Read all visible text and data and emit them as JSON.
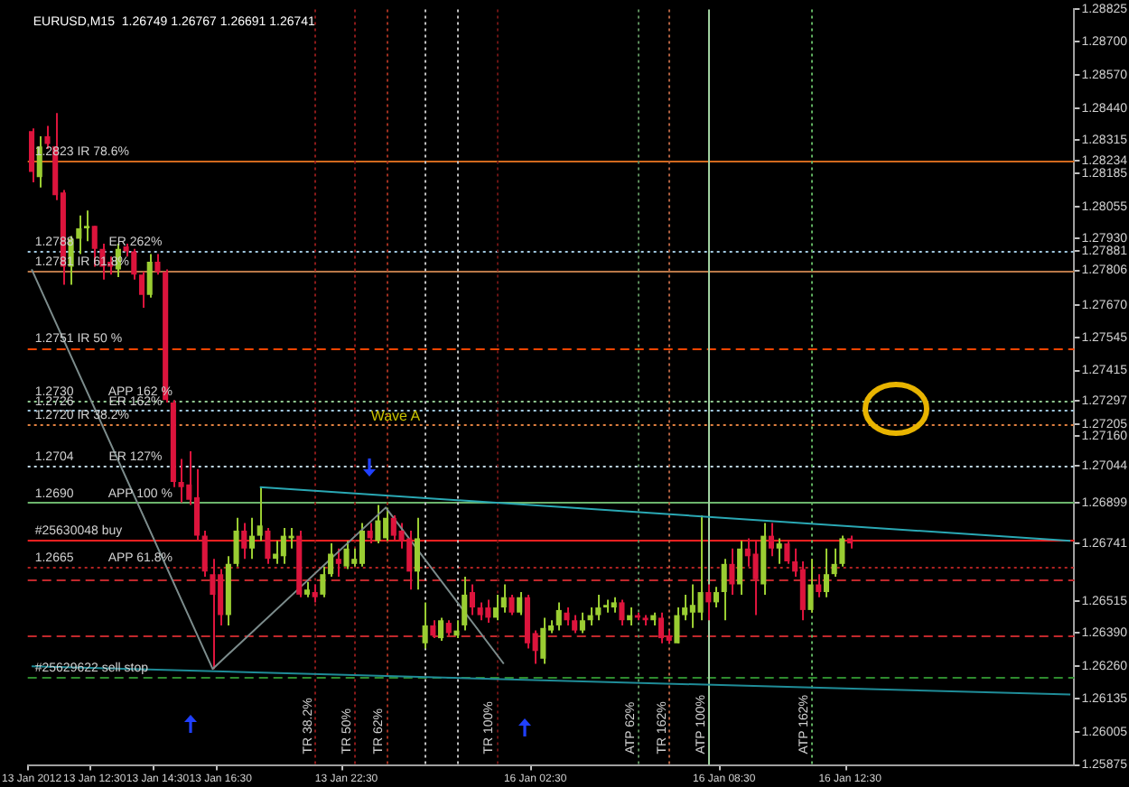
{
  "chart_data": {
    "type": "candlestick",
    "title": "EURUSD,M15  1.26749 1.26767 1.26691 1.26741",
    "categories": [
      "13 Jan 2012",
      null,
      null,
      null,
      null,
      null,
      null,
      null,
      "13 Jan 12:30",
      null,
      null,
      null,
      null,
      null,
      null,
      null,
      "13 Jan 14:30",
      null,
      null,
      null,
      null,
      null,
      null,
      null,
      "13 Jan 16:30",
      null,
      null,
      null,
      null,
      null,
      null,
      null,
      null,
      null,
      null,
      null,
      null,
      null,
      null,
      null,
      "13 Jan 22:30",
      null,
      null,
      null,
      null,
      null,
      null,
      null,
      null,
      null,
      null,
      null,
      null,
      null,
      null,
      null,
      null,
      null,
      null,
      null,
      null,
      null,
      null,
      null,
      "16 Jan 02:30",
      null,
      null,
      null,
      null,
      null,
      null,
      null,
      null,
      null,
      null,
      null,
      null,
      null,
      null,
      null,
      null,
      null,
      null,
      null,
      null,
      null,
      null,
      null,
      "16 Jan 08:30",
      null,
      null,
      null,
      null,
      null,
      null,
      null,
      null,
      null,
      null,
      null,
      null,
      null,
      null,
      null,
      "16 Jan 12:30",
      null,
      null,
      null,
      null,
      null,
      null,
      null,
      null,
      null,
      null,
      null,
      null,
      null,
      null,
      null,
      null,
      null,
      null,
      null,
      null,
      null,
      null,
      null,
      null,
      null,
      null,
      null,
      null
    ],
    "ohlc": [
      [
        1.2835,
        1.2836,
        1.2815,
        1.2819
      ],
      [
        1.2817,
        1.2833,
        1.2813,
        1.2829
      ],
      [
        1.2833,
        1.2837,
        1.2828,
        1.283
      ],
      [
        1.2829,
        1.2842,
        1.2808,
        1.281
      ],
      [
        1.2811,
        1.2812,
        1.2775,
        1.2782
      ],
      [
        1.2782,
        1.2794,
        1.2775,
        1.2793
      ],
      [
        1.2793,
        1.2802,
        1.2787,
        1.2797
      ],
      [
        1.2797,
        1.2804,
        1.2792,
        1.2798
      ],
      [
        1.2798,
        1.2798,
        1.2782,
        1.2789
      ],
      [
        1.2789,
        1.2791,
        1.2777,
        1.2782
      ],
      [
        1.2784,
        1.2786,
        1.2779,
        1.2782
      ],
      [
        1.2781,
        1.2791,
        1.2778,
        1.2789
      ],
      [
        1.279,
        1.2791,
        1.2786,
        1.2788
      ],
      [
        1.2788,
        1.2789,
        1.2777,
        1.2779
      ],
      [
        1.2779,
        1.278,
        1.2766,
        1.2771
      ],
      [
        1.2771,
        1.2787,
        1.277,
        1.2784
      ],
      [
        1.2784,
        1.2787,
        1.2779,
        1.278
      ],
      [
        1.278,
        1.2781,
        1.2729,
        1.273
      ],
      [
        1.2729,
        1.273,
        1.2696,
        1.2698
      ],
      [
        1.2698,
        1.2707,
        1.269,
        1.2696
      ],
      [
        1.2697,
        1.271,
        1.2689,
        1.2691
      ],
      [
        1.2692,
        1.2703,
        1.2675,
        1.2677
      ],
      [
        1.2677,
        1.2679,
        1.2661,
        1.2663
      ],
      [
        1.2662,
        1.2668,
        1.2625,
        1.2654
      ],
      [
        1.2662,
        1.2664,
        1.2642,
        1.2646
      ],
      [
        1.2646,
        1.2669,
        1.2642,
        1.2666
      ],
      [
        1.2666,
        1.2684,
        1.2665,
        1.2679
      ],
      [
        1.2679,
        1.2682,
        1.2668,
        1.2672
      ],
      [
        1.2672,
        1.2684,
        1.2668,
        1.2677
      ],
      [
        1.2677,
        1.2696,
        1.2675,
        1.2681
      ],
      [
        1.2679,
        1.268,
        1.2666,
        1.2668
      ],
      [
        1.2668,
        1.2675,
        1.2666,
        1.267
      ],
      [
        1.2669,
        1.268,
        1.2666,
        1.2677
      ],
      [
        1.2676,
        1.268,
        1.2672,
        1.2677
      ],
      [
        1.2677,
        1.2679,
        1.2653,
        1.2654
      ],
      [
        1.2654,
        1.2659,
        1.2653,
        1.2656
      ],
      [
        1.2655,
        1.2658,
        1.2651,
        1.2653
      ],
      [
        1.2654,
        1.2665,
        1.2653,
        1.2662
      ],
      [
        1.2662,
        1.2674,
        1.2661,
        1.267
      ],
      [
        1.2668,
        1.2672,
        1.2661,
        1.2666
      ],
      [
        1.2665,
        1.2675,
        1.2664,
        1.2672
      ],
      [
        1.2666,
        1.2672,
        1.2665,
        1.2668
      ],
      [
        1.2666,
        1.2682,
        1.2665,
        1.2679
      ],
      [
        1.2679,
        1.2682,
        1.2674,
        1.2676
      ],
      [
        1.2675,
        1.2689,
        1.2674,
        1.2683
      ],
      [
        1.2676,
        1.2688,
        1.2675,
        1.2684
      ],
      [
        1.2684,
        1.2685,
        1.2675,
        1.2677
      ],
      [
        1.2679,
        1.2682,
        1.2672,
        1.2675
      ],
      [
        1.2676,
        1.2679,
        1.2656,
        1.2663
      ],
      [
        1.2663,
        1.2684,
        1.2656,
        1.2676
      ],
      [
        1.2635,
        1.2651,
        1.2633,
        1.2642
      ],
      [
        1.2642,
        1.2644,
        1.2637,
        1.2638
      ],
      [
        1.2637,
        1.2645,
        1.2636,
        1.2644
      ],
      [
        1.2643,
        1.2644,
        1.2638,
        1.2639
      ],
      [
        1.2638,
        1.2644,
        1.2637,
        1.264
      ],
      [
        1.2642,
        1.2661,
        1.264,
        1.2654
      ],
      [
        1.2655,
        1.2658,
        1.2646,
        1.2649
      ],
      [
        1.2649,
        1.2651,
        1.2644,
        1.2646
      ],
      [
        1.2649,
        1.2652,
        1.2643,
        1.2645
      ],
      [
        1.2645,
        1.2654,
        1.2644,
        1.2649
      ],
      [
        1.2649,
        1.2658,
        1.2647,
        1.2653
      ],
      [
        1.2653,
        1.2654,
        1.2646,
        1.2647
      ],
      [
        1.2647,
        1.2655,
        1.2646,
        1.2653
      ],
      [
        1.2653,
        1.2654,
        1.2633,
        1.2635
      ],
      [
        1.2639,
        1.264,
        1.2627,
        1.2632
      ],
      [
        1.2629,
        1.2645,
        1.2627,
        1.2641
      ],
      [
        1.264,
        1.2644,
        1.2639,
        1.2642
      ],
      [
        1.2642,
        1.2651,
        1.264,
        1.2648
      ],
      [
        1.2647,
        1.2649,
        1.2642,
        1.2644
      ],
      [
        1.2644,
        1.2646,
        1.2639,
        1.264
      ],
      [
        1.264,
        1.2647,
        1.2639,
        1.2644
      ],
      [
        1.2644,
        1.2649,
        1.2642,
        1.2646
      ],
      [
        1.2646,
        1.2654,
        1.2644,
        1.2649
      ],
      [
        1.2649,
        1.2652,
        1.2647,
        1.265
      ],
      [
        1.2649,
        1.2653,
        1.2647,
        1.2651
      ],
      [
        1.2651,
        1.2652,
        1.2642,
        1.2644
      ],
      [
        1.2644,
        1.2649,
        1.2642,
        1.2646
      ],
      [
        1.2646,
        1.2647,
        1.2644,
        1.2645
      ],
      [
        1.2645,
        1.2646,
        1.2642,
        1.2644
      ],
      [
        1.2644,
        1.2647,
        1.2642,
        1.2646
      ],
      [
        1.2645,
        1.2647,
        1.2635,
        1.2637
      ],
      [
        1.2638,
        1.264,
        1.2635,
        1.2636
      ],
      [
        1.2635,
        1.2649,
        1.2635,
        1.2646
      ],
      [
        1.2646,
        1.2654,
        1.2644,
        1.2649
      ],
      [
        1.2647,
        1.2658,
        1.2641,
        1.265
      ],
      [
        1.2647,
        1.2685,
        1.2644,
        1.2655
      ],
      [
        1.2655,
        1.2658,
        1.2644,
        1.2651
      ],
      [
        1.2651,
        1.2657,
        1.2649,
        1.2655
      ],
      [
        1.2655,
        1.2668,
        1.2644,
        1.2666
      ],
      [
        1.2666,
        1.2672,
        1.2654,
        1.2658
      ],
      [
        1.2658,
        1.2675,
        1.2654,
        1.2672
      ],
      [
        1.2672,
        1.2676,
        1.2665,
        1.2669
      ],
      [
        1.267,
        1.2675,
        1.2646,
        1.266
      ],
      [
        1.2658,
        1.2682,
        1.2654,
        1.2677
      ],
      [
        1.2677,
        1.2682,
        1.2669,
        1.2672
      ],
      [
        1.2672,
        1.2676,
        1.2666,
        1.2674
      ],
      [
        1.2674,
        1.2675,
        1.2666,
        1.2667
      ],
      [
        1.2667,
        1.2672,
        1.2661,
        1.2663
      ],
      [
        1.2664,
        1.2667,
        1.2644,
        1.2648
      ],
      [
        1.2648,
        1.2668,
        1.2647,
        1.2658
      ],
      [
        1.2658,
        1.2662,
        1.2653,
        1.2655
      ],
      [
        1.2655,
        1.2672,
        1.2653,
        1.2662
      ],
      [
        1.2662,
        1.2672,
        1.2661,
        1.2666
      ],
      [
        1.2666,
        1.2677,
        1.2665,
        1.2676
      ],
      [
        1.2676,
        1.2677,
        1.2672,
        1.2674
      ],
      null,
      null,
      null,
      null,
      null,
      null,
      null,
      null,
      null,
      null,
      null,
      null,
      null,
      null,
      null,
      null,
      null,
      null,
      null,
      null,
      null,
      null,
      null,
      null,
      null,
      null,
      null,
      null
    ],
    "colors": [
      "#dc143c",
      "#9acd32",
      "#dc143c",
      "#dc143c",
      "#dc143c",
      "#9acd32",
      "#9acd32",
      "#9acd32",
      "#dc143c",
      "#dc143c",
      "#dc143c",
      "#9acd32",
      "#dc143c",
      "#dc143c",
      "#dc143c",
      "#9acd32",
      "#dc143c",
      "#dc143c",
      "#dc143c",
      "#dc143c",
      "#dc143c",
      "#dc143c",
      "#dc143c",
      "#dc143c",
      "#dc143c",
      "#9acd32",
      "#9acd32",
      "#dc143c",
      "#9acd32",
      "#9acd32",
      "#dc143c",
      "#9acd32",
      "#9acd32",
      "#9acd32",
      "#dc143c",
      "#9acd32",
      "#dc143c",
      "#9acd32",
      "#9acd32",
      "#dc143c",
      "#9acd32",
      "#9acd32",
      "#9acd32",
      "#dc143c",
      "#9acd32",
      "#9acd32",
      "#dc143c",
      "#dc143c",
      "#dc143c",
      "#9acd32",
      "#9acd32",
      "#dc143c",
      "#9acd32",
      "#dc143c",
      "#9acd32",
      "#9acd32",
      "#dc143c",
      "#dc143c",
      "#dc143c",
      "#9acd32",
      "#9acd32",
      "#dc143c",
      "#9acd32",
      "#dc143c",
      "#dc143c",
      "#9acd32",
      "#9acd32",
      "#9acd32",
      "#dc143c",
      "#dc143c",
      "#9acd32",
      "#9acd32",
      "#9acd32",
      "#9acd32",
      "#9acd32",
      "#dc143c",
      "#9acd32",
      "#dc143c",
      "#dc143c",
      "#9acd32",
      "#dc143c",
      "#dc143c",
      "#9acd32",
      "#9acd32",
      "#9acd32",
      "#9acd32",
      "#dc143c",
      "#9acd32",
      "#9acd32",
      "#dc143c",
      "#9acd32",
      "#dc143c",
      "#dc143c",
      "#9acd32",
      "#dc143c",
      "#9acd32",
      "#dc143c",
      "#dc143c",
      "#dc143c",
      "#9acd32",
      "#dc143c",
      "#9acd32",
      "#9acd32",
      "#9acd32",
      "#dc143c",
      null,
      null,
      null,
      null,
      null,
      null,
      null,
      null,
      null,
      null,
      null,
      null,
      null,
      null,
      null,
      null,
      null,
      null,
      null,
      null,
      null,
      null,
      null,
      null,
      null,
      null,
      null,
      null
    ],
    "series": [
      {
        "type": "line",
        "color": "#7c8c8c",
        "values": [
          1.2781,
          null,
          null,
          null,
          null,
          null,
          null,
          null,
          null,
          null,
          null,
          null,
          null,
          null,
          null,
          null,
          null,
          null,
          null,
          null,
          null,
          null,
          null,
          1.2625,
          null,
          null,
          null,
          null,
          null,
          null,
          null,
          null,
          null,
          null,
          null,
          null,
          null,
          null,
          null,
          null,
          null,
          null,
          null,
          null,
          null,
          1.2688,
          null,
          null,
          null,
          null,
          null,
          null,
          null,
          null,
          null,
          null,
          null,
          null,
          null,
          null,
          1.2627,
          null,
          null,
          null,
          null,
          null,
          null,
          null,
          null,
          null,
          null,
          null,
          null,
          null,
          null,
          null,
          null,
          null,
          null,
          null,
          null,
          null,
          null,
          null,
          null,
          null,
          null,
          null,
          null,
          null,
          null,
          null,
          null,
          null,
          null,
          null,
          null,
          null,
          null,
          null,
          null,
          null,
          null,
          null,
          null,
          null,
          null,
          null,
          null,
          null,
          null,
          null,
          null,
          null,
          null,
          null,
          null,
          null,
          null,
          null,
          null,
          null,
          null,
          null,
          null,
          null,
          null,
          null,
          null,
          null,
          null,
          null,
          null
        ]
      },
      {
        "type": "line",
        "color": "#2aa8b4",
        "values": [
          null,
          null,
          null,
          null,
          null,
          null,
          null,
          null,
          null,
          null,
          null,
          null,
          null,
          null,
          null,
          null,
          null,
          null,
          null,
          null,
          null,
          null,
          null,
          null,
          null,
          null,
          null,
          null,
          null,
          1.2696,
          null,
          null,
          null,
          null,
          null,
          null,
          null,
          null,
          null,
          null,
          null,
          null,
          null,
          null,
          null,
          null,
          null,
          null,
          null,
          null,
          null,
          null,
          null,
          null,
          null,
          null,
          null,
          null,
          null,
          null,
          null,
          null,
          null,
          null,
          null,
          null,
          null,
          null,
          null,
          null,
          null,
          null,
          null,
          null,
          null,
          null,
          null,
          null,
          null,
          null,
          null,
          null,
          null,
          null,
          null,
          null,
          null,
          null,
          null,
          null,
          null,
          null,
          null,
          null,
          null,
          null,
          null,
          null,
          null,
          null,
          null,
          null,
          null,
          null,
          null,
          null,
          null,
          null,
          null,
          null,
          null,
          null,
          null,
          null,
          null,
          null,
          null,
          null,
          null,
          null,
          null,
          null,
          null,
          null,
          null,
          null,
          null,
          null,
          null,
          null,
          null,
          null,
          1.2675
        ]
      },
      {
        "type": "line",
        "color": "#1f8c98",
        "values": [
          1.2626,
          null,
          null,
          null,
          null,
          null,
          null,
          null,
          null,
          null,
          null,
          null,
          null,
          null,
          null,
          null,
          null,
          null,
          null,
          null,
          null,
          null,
          null,
          null,
          null,
          null,
          null,
          null,
          null,
          null,
          null,
          null,
          null,
          null,
          null,
          null,
          null,
          null,
          null,
          null,
          null,
          null,
          null,
          null,
          null,
          null,
          null,
          null,
          null,
          null,
          null,
          null,
          null,
          null,
          null,
          null,
          null,
          null,
          null,
          null,
          null,
          null,
          null,
          null,
          null,
          null,
          null,
          null,
          null,
          null,
          null,
          null,
          null,
          null,
          null,
          null,
          null,
          null,
          null,
          null,
          null,
          null,
          null,
          null,
          null,
          null,
          null,
          null,
          null,
          null,
          null,
          null,
          null,
          null,
          null,
          null,
          null,
          null,
          null,
          null,
          null,
          null,
          null,
          null,
          null,
          null,
          null,
          null,
          null,
          null,
          null,
          null,
          null,
          null,
          null,
          null,
          null,
          null,
          null,
          null,
          null,
          null,
          null,
          null,
          null,
          null,
          null,
          null,
          null,
          null,
          null,
          null,
          1.2615
        ]
      }
    ],
    "ylim": [
      1.25875,
      1.28825
    ],
    "yticks": [
      1.28825,
      {
        "value": 1.287,
        "label": "1.28700"
      },
      {
        "value": 1.2857,
        "label": "1.28570"
      },
      {
        "value": 1.2844,
        "label": "1.28440"
      },
      1.28315,
      1.28234,
      1.28185,
      1.28055,
      {
        "value": 1.2793,
        "label": "1.27930"
      },
      1.27881,
      1.27806,
      {
        "value": 1.2767,
        "label": "1.27670"
      },
      1.27545,
      1.27415,
      1.27297,
      1.27205,
      {
        "value": 1.2716,
        "label": "1.27160"
      },
      1.27044,
      1.26899,
      1.26741,
      1.26515,
      {
        "value": 1.2639,
        "label": "1.26390"
      },
      {
        "value": 1.2626,
        "label": "1.26260"
      },
      1.26135,
      1.26005,
      1.25875
    ],
    "ref_lines": [
      {
        "axis": "y",
        "value": 1.28234,
        "label": "1.2823 IR 78.6%",
        "color": "#d2691e",
        "line_style": "solid"
      },
      {
        "axis": "y",
        "value": 1.27881,
        "label": "1.2788          ER 262%",
        "color": "#a0c8e0",
        "line_style": "dotted"
      },
      {
        "axis": "y",
        "value": 1.27806,
        "label": "1.2781 IR 61.8%",
        "color": "#b87848",
        "line_style": "solid"
      },
      {
        "axis": "y",
        "value": 1.27505,
        "label": "1.2751 IR 50 %",
        "color": "#ff4500",
        "line_style": "dashed"
      },
      {
        "axis": "y",
        "value": 1.27297,
        "label": "1.2730          APP 162 %",
        "color": "#90c890",
        "line_style": "dotted"
      },
      {
        "axis": "y",
        "value": 1.2726,
        "label": "1.2726          ER 162%",
        "color": "#a0c8e0",
        "line_style": "dotted"
      },
      {
        "axis": "y",
        "value": 1.27205,
        "label": "1.2720 IR 38.2%",
        "color": "#e08040",
        "line_style": "dotted"
      },
      {
        "axis": "y",
        "value": 1.27044,
        "label": "1.2704          ER 127%",
        "color": "#c0d8e8",
        "line_style": "dotted"
      },
      {
        "axis": "y",
        "value": 1.26899,
        "label": "1.2690          APP 100 %",
        "color": "#6cb46c",
        "line_style": "solid"
      },
      {
        "axis": "y",
        "value": 1.26755,
        "label": "#25630048 buy",
        "color": "#ff2020",
        "line_style": "solid"
      },
      {
        "axis": "y",
        "value": 1.2665,
        "label": "1.2665          APP 61.8%",
        "color": "#b22222",
        "line_style": "dotted"
      },
      {
        "axis": "y",
        "value": 1.266,
        "color": "#c0282c",
        "line_style": "dashed"
      },
      {
        "axis": "y",
        "value": 1.2638,
        "color": "#c0282c",
        "line_style": "dashed"
      },
      {
        "axis": "y",
        "value": 1.2622,
        "label": "#25629622 sell stop",
        "color": "#2e8b2e",
        "line_style": "dashed"
      }
    ],
    "annotations": [
      "Wave A",
      "TR 38.2%",
      "TR 50%",
      "TR 62%",
      "TR 100%",
      "ATP 62%",
      "TR 162%",
      "ATP 100%",
      "ATP 162%"
    ]
  }
}
